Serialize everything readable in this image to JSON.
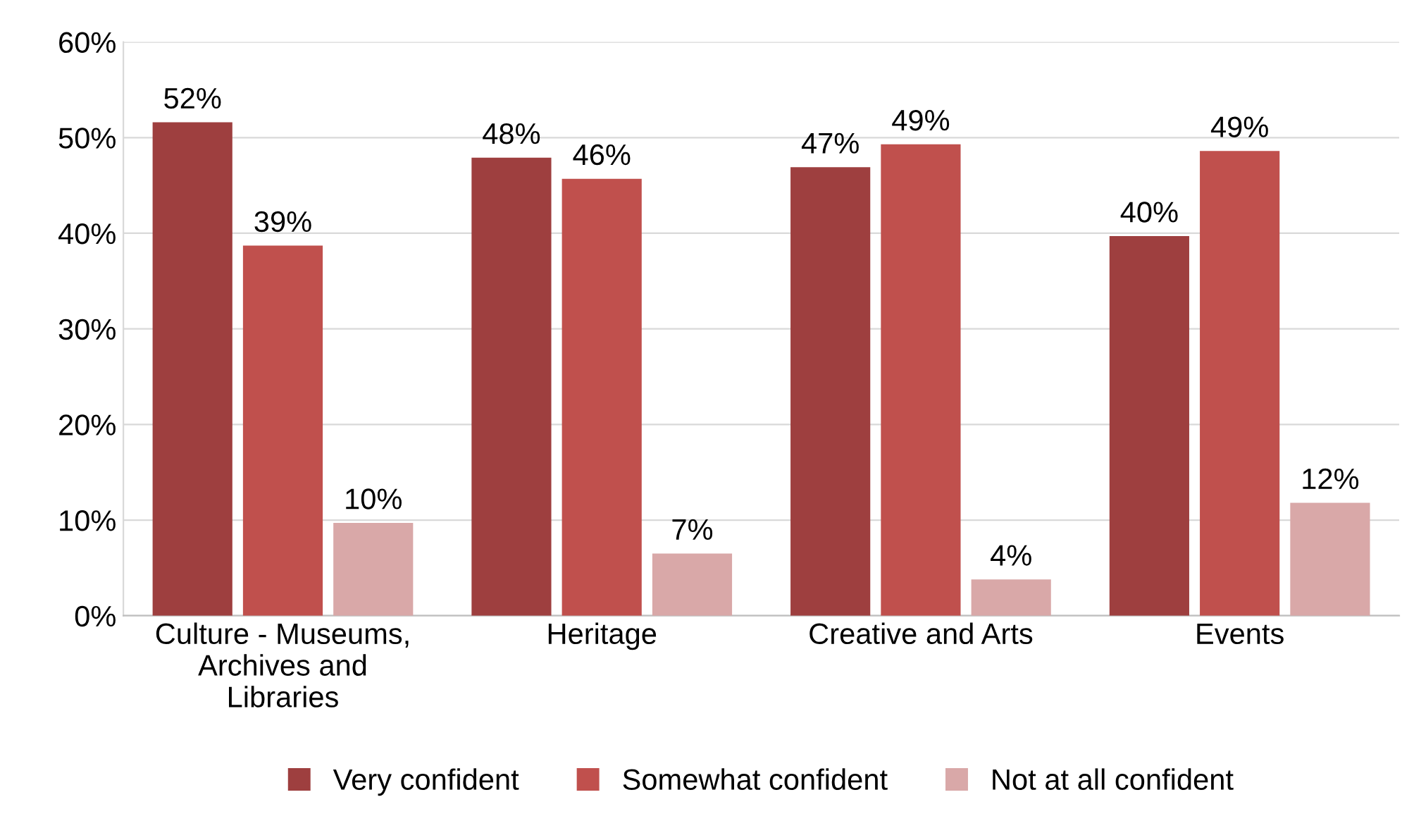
{
  "chart_data": {
    "type": "bar",
    "categories": [
      "Culture - Museums,\nArchives and\nLibraries",
      "Heritage",
      "Creative and Arts",
      "Events"
    ],
    "series": [
      {
        "name": "Very confident",
        "color": "#9e3f3f",
        "values": [
          51.6,
          47.9,
          46.9,
          39.7
        ],
        "value_labels": [
          "52%",
          "48%",
          "47%",
          "40%"
        ]
      },
      {
        "name": "Somewhat confident",
        "color": "#c0504d",
        "values": [
          38.7,
          45.7,
          49.3,
          48.6
        ],
        "value_labels": [
          "39%",
          "46%",
          "49%",
          "49%"
        ]
      },
      {
        "name": "Not at all confident",
        "color": "#d9a8a8",
        "values": [
          9.7,
          6.5,
          3.8,
          11.8
        ],
        "value_labels": [
          "10%",
          "7%",
          "4%",
          "12%"
        ]
      }
    ],
    "ylim": [
      0,
      60
    ],
    "yticks": [
      {
        "value": 0,
        "label": "0%"
      },
      {
        "value": 10,
        "label": "10%"
      },
      {
        "value": 20,
        "label": "20%"
      },
      {
        "value": 30,
        "label": "30%"
      },
      {
        "value": 40,
        "label": "40%"
      },
      {
        "value": 50,
        "label": "50%"
      },
      {
        "value": 60,
        "label": "60%"
      }
    ],
    "grid": "y",
    "legend": "bottom"
  }
}
